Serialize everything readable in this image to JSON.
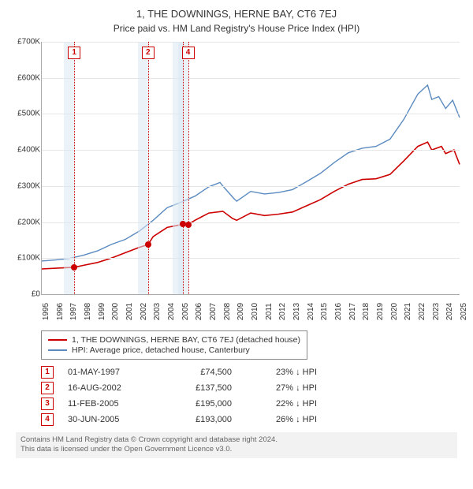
{
  "title": "1, THE DOWNINGS, HERNE BAY, CT6 7EJ",
  "subtitle": "Price paid vs. HM Land Registry's House Price Index (HPI)",
  "chart": {
    "type": "line",
    "background_color": "#ffffff",
    "grid_color": "#e6e6e6",
    "x": {
      "min": 1995,
      "max": 2025,
      "ticks": [
        1995,
        1996,
        1997,
        1998,
        1999,
        2000,
        2001,
        2002,
        2003,
        2004,
        2005,
        2006,
        2007,
        2008,
        2009,
        2010,
        2011,
        2012,
        2013,
        2014,
        2015,
        2016,
        2017,
        2018,
        2019,
        2020,
        2021,
        2022,
        2023,
        2024,
        2025
      ]
    },
    "y": {
      "min": 0,
      "max": 700000,
      "ticks": [
        0,
        100000,
        200000,
        300000,
        400000,
        500000,
        600000,
        700000
      ],
      "tick_labels": [
        "£0",
        "£100K",
        "£200K",
        "£300K",
        "£400K",
        "£500K",
        "£600K",
        "£700K"
      ]
    },
    "bands": [
      {
        "from": 1996.6,
        "to": 1997.4,
        "color": "#dbe8f2"
      },
      {
        "from": 2001.9,
        "to": 2002.7,
        "color": "#dbe8f2"
      },
      {
        "from": 2004.4,
        "to": 2005.2,
        "color": "#dbe8f2"
      },
      {
        "from": 2004.8,
        "to": 2005.6,
        "color": "#dbe8f2"
      }
    ],
    "vlines": [
      {
        "x": 1997.33,
        "color": "#cc0000"
      },
      {
        "x": 2002.63,
        "color": "#cc0000"
      },
      {
        "x": 2005.12,
        "color": "#cc0000"
      },
      {
        "x": 2005.5,
        "color": "#cc0000"
      }
    ],
    "marker_boxes": [
      {
        "x": 1997.33,
        "label": "1",
        "border": "#cc0000"
      },
      {
        "x": 2002.63,
        "label": "2",
        "border": "#cc0000"
      },
      {
        "x": 2005.5,
        "label": "4",
        "border": "#cc0000"
      }
    ],
    "series": [
      {
        "name": "1, THE DOWNINGS, HERNE BAY, CT6 7EJ (detached house)",
        "color": "#cc0000",
        "width": 1.6,
        "points": [
          [
            1995,
            70000
          ],
          [
            1996,
            72000
          ],
          [
            1997,
            74000
          ],
          [
            1997.33,
            74500
          ],
          [
            1998,
            80000
          ],
          [
            1999,
            88000
          ],
          [
            2000,
            100000
          ],
          [
            2001,
            115000
          ],
          [
            2002,
            130000
          ],
          [
            2002.63,
            137500
          ],
          [
            2003,
            160000
          ],
          [
            2004,
            185000
          ],
          [
            2005,
            193000
          ],
          [
            2005.12,
            195000
          ],
          [
            2005.5,
            193000
          ],
          [
            2006,
            205000
          ],
          [
            2007,
            225000
          ],
          [
            2008,
            230000
          ],
          [
            2008.7,
            210000
          ],
          [
            2009,
            205000
          ],
          [
            2010,
            225000
          ],
          [
            2011,
            218000
          ],
          [
            2012,
            222000
          ],
          [
            2013,
            228000
          ],
          [
            2014,
            245000
          ],
          [
            2015,
            262000
          ],
          [
            2016,
            285000
          ],
          [
            2017,
            305000
          ],
          [
            2018,
            318000
          ],
          [
            2019,
            320000
          ],
          [
            2020,
            332000
          ],
          [
            2021,
            370000
          ],
          [
            2022,
            410000
          ],
          [
            2022.7,
            422000
          ],
          [
            2023,
            400000
          ],
          [
            2023.7,
            410000
          ],
          [
            2024,
            390000
          ],
          [
            2024.6,
            400000
          ],
          [
            2025,
            360000
          ]
        ],
        "dots": [
          {
            "x": 1997.33,
            "y": 74500
          },
          {
            "x": 2002.63,
            "y": 137500
          },
          {
            "x": 2005.12,
            "y": 195000
          },
          {
            "x": 2005.5,
            "y": 193000
          }
        ]
      },
      {
        "name": "HPI: Average price, detached house, Canterbury",
        "color": "#5b8bc0",
        "width": 1.4,
        "points": [
          [
            1995,
            92000
          ],
          [
            1996,
            95000
          ],
          [
            1997,
            99000
          ],
          [
            1998,
            108000
          ],
          [
            1999,
            120000
          ],
          [
            2000,
            138000
          ],
          [
            2001,
            152000
          ],
          [
            2002,
            175000
          ],
          [
            2003,
            205000
          ],
          [
            2004,
            240000
          ],
          [
            2005,
            255000
          ],
          [
            2006,
            272000
          ],
          [
            2007,
            298000
          ],
          [
            2007.8,
            310000
          ],
          [
            2008,
            300000
          ],
          [
            2008.8,
            265000
          ],
          [
            2009,
            258000
          ],
          [
            2010,
            285000
          ],
          [
            2011,
            278000
          ],
          [
            2012,
            282000
          ],
          [
            2013,
            290000
          ],
          [
            2014,
            312000
          ],
          [
            2015,
            335000
          ],
          [
            2016,
            365000
          ],
          [
            2017,
            392000
          ],
          [
            2018,
            405000
          ],
          [
            2019,
            410000
          ],
          [
            2020,
            430000
          ],
          [
            2021,
            485000
          ],
          [
            2022,
            555000
          ],
          [
            2022.7,
            580000
          ],
          [
            2023,
            540000
          ],
          [
            2023.5,
            548000
          ],
          [
            2024,
            515000
          ],
          [
            2024.5,
            538000
          ],
          [
            2025,
            490000
          ]
        ]
      }
    ]
  },
  "legend": [
    {
      "color": "#cc0000",
      "label": "1, THE DOWNINGS, HERNE BAY, CT6 7EJ (detached house)"
    },
    {
      "color": "#5b8bc0",
      "label": "HPI: Average price, detached house, Canterbury"
    }
  ],
  "sales": [
    {
      "n": "1",
      "border": "#cc0000",
      "date": "01-MAY-1997",
      "price": "£74,500",
      "pct": "23% ↓ HPI"
    },
    {
      "n": "2",
      "border": "#cc0000",
      "date": "16-AUG-2002",
      "price": "£137,500",
      "pct": "27% ↓ HPI"
    },
    {
      "n": "3",
      "border": "#cc0000",
      "date": "11-FEB-2005",
      "price": "£195,000",
      "pct": "22% ↓ HPI"
    },
    {
      "n": "4",
      "border": "#cc0000",
      "date": "30-JUN-2005",
      "price": "£193,000",
      "pct": "26% ↓ HPI"
    }
  ],
  "footer_line1": "Contains HM Land Registry data © Crown copyright and database right 2024.",
  "footer_line2": "This data is licensed under the Open Government Licence v3.0."
}
